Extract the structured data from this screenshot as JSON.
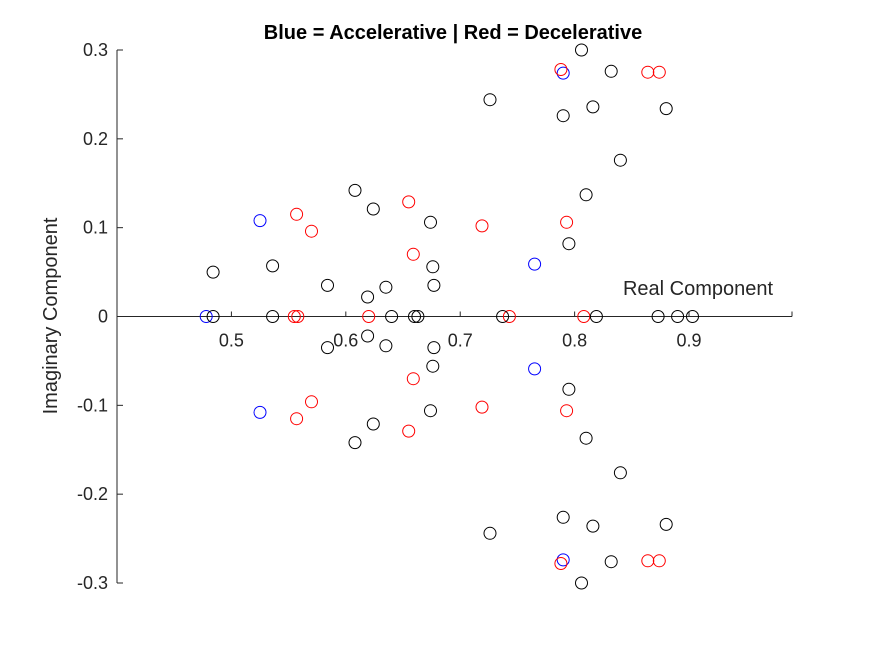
{
  "chart_data": {
    "type": "scatter",
    "title": "Blue = Accelerative | Red = Decelerative",
    "xlabel": "Real Component",
    "ylabel": "Imaginary Component",
    "xlim": [
      0.4,
      0.99
    ],
    "ylim": [
      -0.3,
      0.3
    ],
    "xticks": [
      0.5,
      0.6,
      0.7,
      0.8,
      0.9
    ],
    "xtick_labels": [
      "0.5",
      "0.6",
      "0.7",
      "0.8",
      "0.9"
    ],
    "yticks": [
      -0.3,
      -0.2,
      -0.1,
      0,
      0.1,
      0.2,
      0.3
    ],
    "ytick_labels": [
      "-0.3",
      "-0.2",
      "-0.1",
      "0",
      "0.1",
      "0.2",
      "0.3"
    ],
    "axes_through_origin": true,
    "grid": false,
    "marker": "open-circle",
    "series": [
      {
        "color": "#0000ff",
        "points": [
          [
            0.478,
            0
          ],
          [
            0.525,
            0.108
          ],
          [
            0.525,
            -0.108
          ],
          [
            0.765,
            0.059
          ],
          [
            0.765,
            -0.059
          ],
          [
            0.79,
            0.274
          ],
          [
            0.79,
            -0.274
          ]
        ]
      },
      {
        "color": "#ff0000",
        "points": [
          [
            0.555,
            0
          ],
          [
            0.558,
            0
          ],
          [
            0.557,
            0.115
          ],
          [
            0.557,
            -0.115
          ],
          [
            0.57,
            0.096
          ],
          [
            0.57,
            -0.096
          ],
          [
            0.62,
            0
          ],
          [
            0.655,
            0.129
          ],
          [
            0.655,
            -0.129
          ],
          [
            0.659,
            0.07
          ],
          [
            0.659,
            -0.07
          ],
          [
            0.719,
            0.102
          ],
          [
            0.719,
            -0.102
          ],
          [
            0.743,
            0
          ],
          [
            0.788,
            0.278
          ],
          [
            0.788,
            -0.278
          ],
          [
            0.793,
            0.106
          ],
          [
            0.793,
            -0.106
          ],
          [
            0.808,
            0
          ],
          [
            0.864,
            0.275
          ],
          [
            0.864,
            -0.275
          ],
          [
            0.874,
            0.275
          ],
          [
            0.874,
            -0.275
          ]
        ]
      },
      {
        "color": "#000000",
        "points": [
          [
            0.484,
            0.05
          ],
          [
            0.484,
            0
          ],
          [
            0.536,
            0.057
          ],
          [
            0.536,
            0
          ],
          [
            0.584,
            0.035
          ],
          [
            0.584,
            -0.035
          ],
          [
            0.608,
            0.142
          ],
          [
            0.608,
            -0.142
          ],
          [
            0.619,
            0.022
          ],
          [
            0.619,
            -0.022
          ],
          [
            0.624,
            0.121
          ],
          [
            0.624,
            -0.121
          ],
          [
            0.635,
            0.033
          ],
          [
            0.635,
            -0.033
          ],
          [
            0.64,
            0
          ],
          [
            0.66,
            0
          ],
          [
            0.663,
            0
          ],
          [
            0.674,
            0.106
          ],
          [
            0.674,
            -0.106
          ],
          [
            0.676,
            0.056
          ],
          [
            0.676,
            -0.056
          ],
          [
            0.677,
            0.035
          ],
          [
            0.677,
            -0.035
          ],
          [
            0.726,
            0.244
          ],
          [
            0.726,
            -0.244
          ],
          [
            0.737,
            0
          ],
          [
            0.79,
            0.226
          ],
          [
            0.79,
            -0.226
          ],
          [
            0.795,
            0.082
          ],
          [
            0.795,
            -0.082
          ],
          [
            0.806,
            0.3
          ],
          [
            0.806,
            -0.3
          ],
          [
            0.81,
            0.137
          ],
          [
            0.81,
            -0.137
          ],
          [
            0.816,
            0.236
          ],
          [
            0.816,
            -0.236
          ],
          [
            0.819,
            0
          ],
          [
            0.832,
            0.276
          ],
          [
            0.832,
            -0.276
          ],
          [
            0.84,
            0.176
          ],
          [
            0.84,
            -0.176
          ],
          [
            0.873,
            0
          ],
          [
            0.88,
            0.234
          ],
          [
            0.88,
            -0.234
          ],
          [
            0.89,
            0
          ],
          [
            0.903,
            0
          ]
        ]
      }
    ]
  }
}
